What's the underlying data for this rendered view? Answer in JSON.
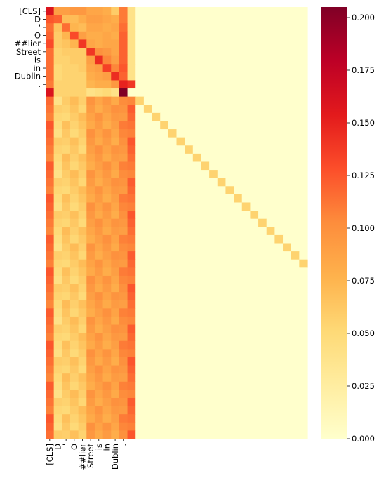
{
  "chart_data": {
    "type": "heatmap",
    "colormap": "YlOrRd",
    "tokens": [
      "[CLS]",
      "D",
      "'",
      "O",
      "##lier",
      "Street",
      "is",
      "in",
      "Dublin",
      "."
    ],
    "n_rows": 53,
    "n_cols": 32,
    "colorbar": {
      "vmin": 0.0,
      "vmax": 0.205,
      "ticks": [
        "0.000",
        "0.025",
        "0.050",
        "0.075",
        "0.100",
        "0.125",
        "0.150",
        "0.175",
        "0.200"
      ]
    },
    "token_block": [
      [
        0.16,
        0.09,
        0.09,
        0.095,
        0.095,
        0.085,
        0.085,
        0.08,
        0.06,
        0.11,
        0.04
      ],
      [
        0.125,
        0.12,
        0.07,
        0.07,
        0.08,
        0.09,
        0.09,
        0.085,
        0.08,
        0.11,
        0.04
      ],
      [
        0.115,
        0.065,
        0.115,
        0.075,
        0.07,
        0.085,
        0.085,
        0.08,
        0.085,
        0.115,
        0.04
      ],
      [
        0.12,
        0.06,
        0.075,
        0.13,
        0.09,
        0.08,
        0.08,
        0.085,
        0.08,
        0.12,
        0.04
      ],
      [
        0.13,
        0.06,
        0.065,
        0.075,
        0.14,
        0.085,
        0.08,
        0.085,
        0.085,
        0.12,
        0.04
      ],
      [
        0.115,
        0.055,
        0.06,
        0.06,
        0.06,
        0.14,
        0.1,
        0.095,
        0.085,
        0.12,
        0.04
      ],
      [
        0.115,
        0.055,
        0.055,
        0.06,
        0.06,
        0.09,
        0.145,
        0.105,
        0.09,
        0.12,
        0.04
      ],
      [
        0.115,
        0.05,
        0.055,
        0.055,
        0.06,
        0.085,
        0.09,
        0.135,
        0.105,
        0.125,
        0.04
      ],
      [
        0.115,
        0.05,
        0.055,
        0.055,
        0.055,
        0.08,
        0.085,
        0.09,
        0.145,
        0.12,
        0.04
      ],
      [
        0.11,
        0.055,
        0.055,
        0.055,
        0.055,
        0.075,
        0.08,
        0.08,
        0.095,
        0.15,
        0.14
      ],
      [
        0.16,
        0.055,
        0.055,
        0.055,
        0.055,
        0.04,
        0.045,
        0.05,
        0.04,
        0.205,
        0.0
      ]
    ],
    "padding_rows": {
      "row_start": 11,
      "col_values": [
        0.115,
        0.05,
        0.06,
        0.06,
        0.06,
        0.09,
        0.09,
        0.09,
        0.09,
        0.1,
        0.115
      ],
      "diagonal_value": 0.055,
      "diagonal_col_offset": 10
    }
  }
}
